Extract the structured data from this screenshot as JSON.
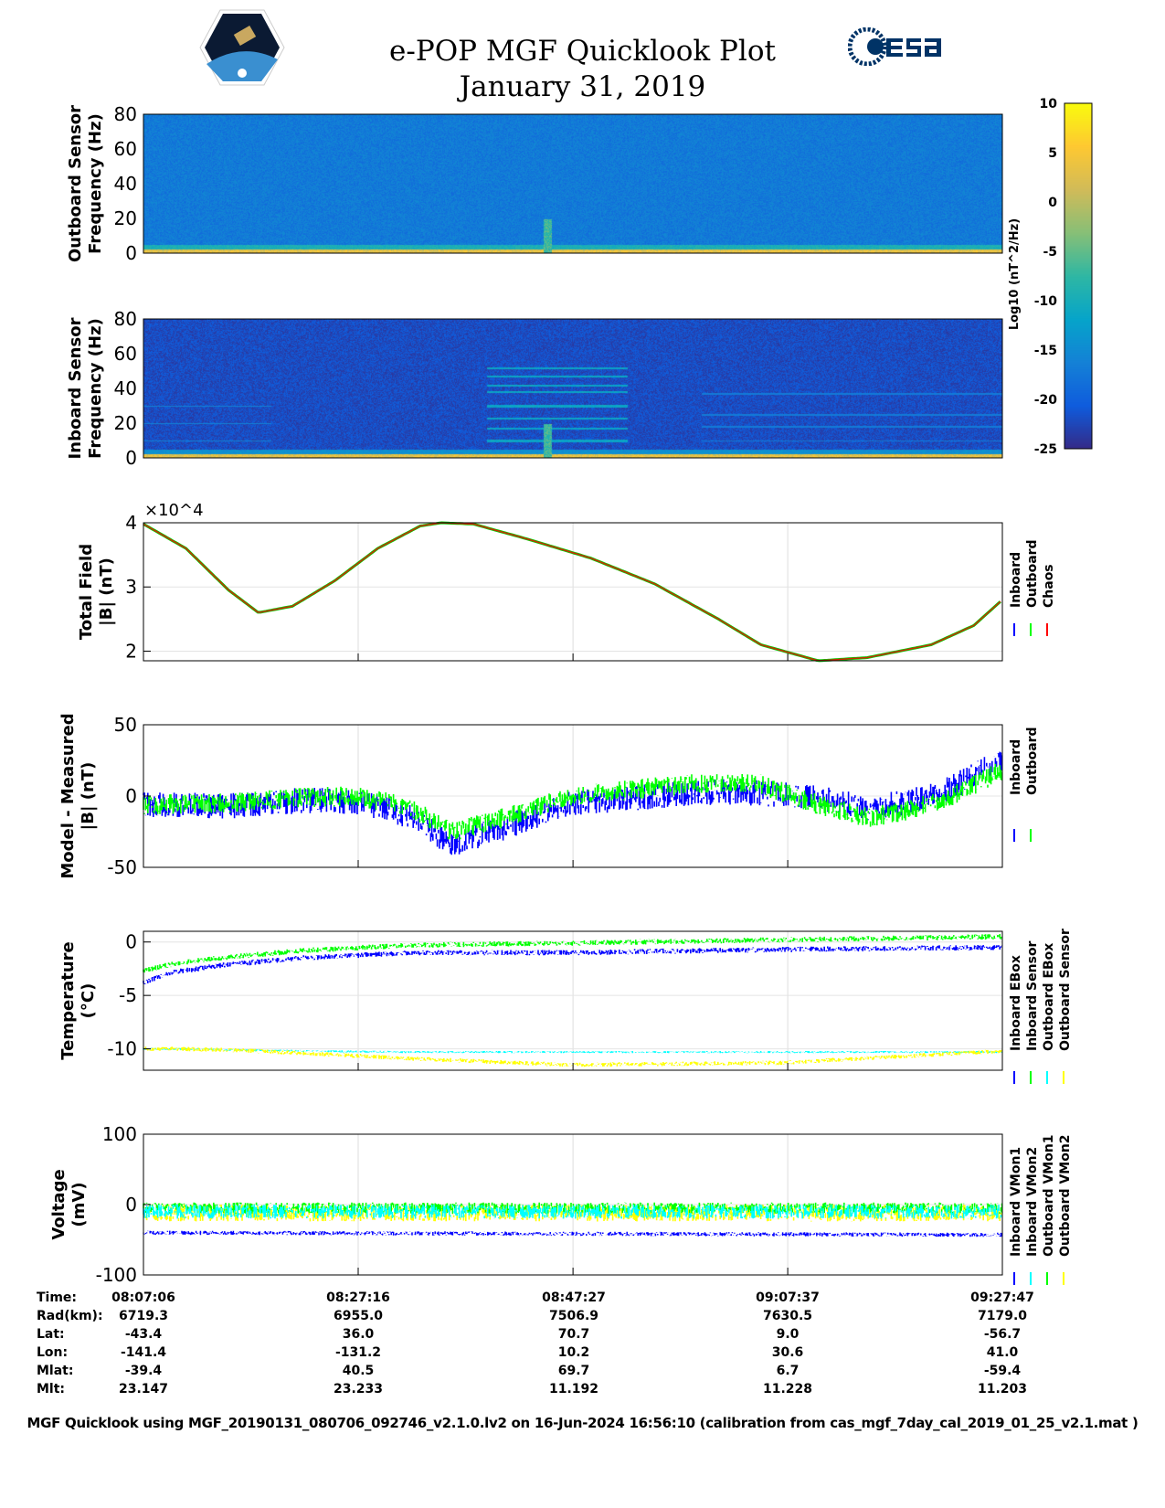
{
  "header": {
    "title": "e-POP MGF Quicklook Plot",
    "date": "January 31, 2019",
    "esa_logo": "esa",
    "cassiope_logo": "CASSIOPE"
  },
  "colors": {
    "inboard": "#0000ff",
    "outboard": "#00ff00",
    "chaos": "#ff0000",
    "cyan": "#00ffff",
    "yellow": "#ffff00"
  },
  "colorbar": {
    "label": "Log10 (nT^2/Hz)",
    "ticks": [
      "10",
      "5",
      "0",
      "-5",
      "-10",
      "-15",
      "-20",
      "-25"
    ],
    "range": [
      -25,
      10
    ]
  },
  "chart_data": [
    {
      "type": "heatmap",
      "name": "outboard-spectrogram",
      "ylabel": "Outboard Sensor Frequency (Hz)",
      "ylim": [
        0,
        80
      ],
      "yticks": [
        "80",
        "60",
        "40",
        "20",
        "0"
      ],
      "background_level": -17,
      "low_freq_level": 3
    },
    {
      "type": "heatmap",
      "name": "inboard-spectrogram",
      "ylabel": "Inboard Sensor Frequency (Hz)",
      "ylim": [
        0,
        80
      ],
      "yticks": [
        "80",
        "60",
        "40",
        "20",
        "0"
      ],
      "background_level": -22,
      "low_freq_level": 3
    },
    {
      "type": "line",
      "name": "total-field",
      "ylabel": "Total Field |B| (nT)",
      "multiplier": "×10^4",
      "ylim": [
        1.85,
        4.0
      ],
      "yticks": [
        "4",
        "3",
        "2"
      ],
      "legend": [
        "Inboard",
        "Outboard",
        "Chaos"
      ],
      "x": [
        0,
        4,
        8,
        10.8,
        14,
        18,
        22,
        26,
        28,
        31,
        36,
        42,
        48,
        54,
        58,
        63.4,
        68,
        74,
        78,
        80.68
      ],
      "series": [
        {
          "name": "Chaos",
          "values": [
            3.98,
            3.6,
            2.95,
            2.6,
            2.7,
            3.1,
            3.6,
            3.95,
            4.0,
            3.98,
            3.75,
            3.45,
            3.05,
            2.5,
            2.1,
            1.85,
            1.9,
            2.1,
            2.4,
            2.8
          ]
        }
      ]
    },
    {
      "type": "line",
      "name": "model-minus-measured",
      "ylabel": "Model - Measured |B| (nT)",
      "ylim": [
        -50,
        50
      ],
      "yticks": [
        "50",
        "0",
        "-50"
      ],
      "legend": [
        "Inboard",
        "Outboard"
      ],
      "x": [
        0,
        8,
        15,
        20,
        25,
        29,
        34,
        40,
        48,
        54,
        58,
        63,
        68,
        72,
        76,
        80.68
      ],
      "series": [
        {
          "name": "Inboard",
          "values": [
            -6,
            -7,
            -3,
            -4,
            -14,
            -34,
            -22,
            -5,
            0,
            3,
            2,
            -1,
            -8,
            -4,
            6,
            26
          ]
        },
        {
          "name": "Outboard",
          "values": [
            -6,
            -5,
            -1,
            0,
            -8,
            -25,
            -15,
            0,
            6,
            10,
            8,
            -5,
            -15,
            -10,
            0,
            18
          ]
        }
      ]
    },
    {
      "type": "line",
      "name": "temperature",
      "ylabel": "Temperature (°C)",
      "ylim": [
        -12,
        1
      ],
      "yticks": [
        "0",
        "-5",
        "-10"
      ],
      "legend": [
        "Inboard EBox",
        "Inboard Sensor",
        "Outboard EBox",
        "Outboard Sensor"
      ],
      "x": [
        0,
        3,
        8,
        15,
        25,
        40,
        60,
        80.68
      ],
      "series": [
        {
          "name": "Inboard EBox",
          "values": [
            -3.8,
            -2.8,
            -2.1,
            -1.5,
            -1.0,
            -1.0,
            -0.7,
            -0.5
          ]
        },
        {
          "name": "Inboard Sensor",
          "values": [
            -2.7,
            -2.0,
            -1.4,
            -0.8,
            -0.3,
            -0.1,
            0.2,
            0.5
          ]
        },
        {
          "name": "Outboard EBox",
          "values": [
            -10,
            -10,
            -10.1,
            -10.2,
            -10.3,
            -10.3,
            -10.3,
            -10.3
          ]
        },
        {
          "name": "Outboard Sensor",
          "values": [
            -10,
            -10,
            -10.1,
            -10.4,
            -10.9,
            -11.5,
            -11.3,
            -10.2
          ]
        }
      ]
    },
    {
      "type": "line",
      "name": "voltage",
      "ylabel": "Voltage (mV)",
      "ylim": [
        -100,
        100
      ],
      "yticks": [
        "100",
        "0",
        "-100"
      ],
      "legend": [
        "Inboard VMon1",
        "Inboard VMon2",
        "Outboard VMon1",
        "Outboard VMon2"
      ],
      "x": [
        0,
        80.68
      ],
      "series": [
        {
          "name": "Inboard VMon1",
          "values": [
            -40,
            -43
          ]
        },
        {
          "name": "Inboard VMon2",
          "values": [
            -10,
            -10
          ]
        },
        {
          "name": "Outboard VMon1",
          "values": [
            -5,
            -5
          ]
        },
        {
          "name": "Outboard VMon2",
          "values": [
            -12,
            -12
          ]
        }
      ]
    }
  ],
  "xaxis": {
    "range_minutes": [
      0,
      80.68
    ]
  },
  "table": {
    "labels": [
      "Time:",
      "Rad(km):",
      "Lat:",
      "Lon:",
      "Mlat:",
      "Mlt:"
    ],
    "columns": [
      [
        "08:07:06",
        "6719.3",
        "-43.4",
        "-141.4",
        "-39.4",
        "23.147"
      ],
      [
        "08:27:16",
        "6955.0",
        "36.0",
        "-131.2",
        "40.5",
        "23.233"
      ],
      [
        "08:47:27",
        "7506.9",
        "70.7",
        "10.2",
        "69.7",
        "11.192"
      ],
      [
        "09:07:37",
        "7630.5",
        "9.0",
        "30.6",
        "6.7",
        "11.228"
      ],
      [
        "09:27:47",
        "7179.0",
        "-56.7",
        "41.0",
        "-59.4",
        "11.203"
      ]
    ]
  },
  "caption": "MGF Quicklook using MGF_20190131_080706_092746_v2.1.0.lv2 on 16-Jun-2024 16:56:10 (calibration from cas_mgf_7day_cal_2019_01_25_v2.1.mat )"
}
